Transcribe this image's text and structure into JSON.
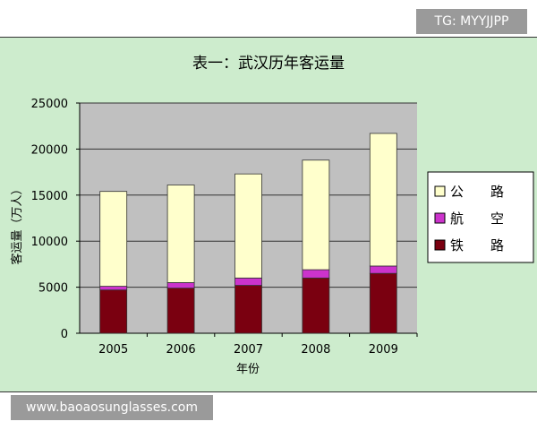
{
  "watermarks": {
    "top": "TG: MYYJJPP",
    "bottom": "www.baoaosunglasses.com"
  },
  "chart_data": {
    "type": "bar",
    "stacked": true,
    "title": "表一：武汉历年客运量",
    "xlabel": "年份",
    "ylabel": "客运量（万人）",
    "categories": [
      "2005",
      "2006",
      "2007",
      "2008",
      "2009"
    ],
    "ylim": [
      0,
      25000
    ],
    "yticks": [
      "0",
      "5000",
      "10000",
      "15000",
      "20000",
      "25000"
    ],
    "grid": true,
    "legend_position": "right",
    "series": [
      {
        "name": "铁　　路",
        "color": "#7a0010",
        "values": [
          4700,
          4900,
          5200,
          6000,
          6500
        ]
      },
      {
        "name": "航　　空",
        "color": "#cc33cc",
        "values": [
          400,
          600,
          800,
          900,
          800
        ]
      },
      {
        "name": "公　　路",
        "color": "#ffffcc",
        "values": [
          10300,
          10600,
          11300,
          11900,
          14400
        ]
      }
    ],
    "legend_order": [
      2,
      1,
      0
    ],
    "colors": {
      "plot_bg": "#c0c0c0",
      "frame_bg": "#cdeccd",
      "grid": "#333333"
    }
  }
}
